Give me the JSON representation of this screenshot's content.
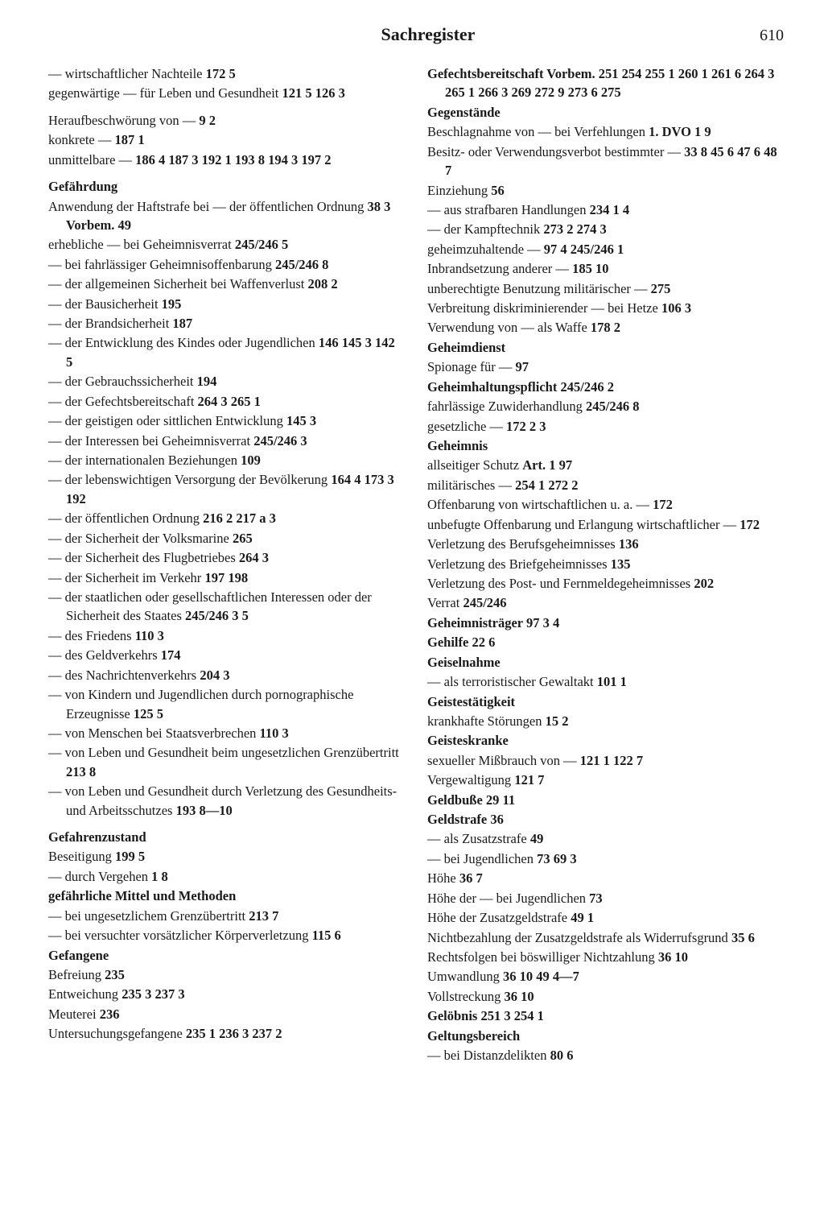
{
  "header": {
    "title": "Sachregister",
    "page": "610"
  },
  "left": [
    {
      "t": "— wirtschaftlicher Nachteile ",
      "r": "172 5"
    },
    {
      "t": "gegenwärtige — für Leben und Gesundheit ",
      "r": "121 5 126 3"
    },
    {
      "t": "Heraufbeschwörung von — ",
      "r": "9 2",
      "gap": true
    },
    {
      "t": "konkrete — ",
      "r": "187 1"
    },
    {
      "t": "unmittelbare — ",
      "r": "186 4 187 3 192 1 193 8 194 3 197 2"
    },
    {
      "h": "Gefährdung",
      "gap": true
    },
    {
      "t": "Anwendung der Haftstrafe bei — der öffentlichen Ordnung ",
      "r": "38 3 Vorbem. 49"
    },
    {
      "t": "erhebliche — bei Geheimnisverrat ",
      "r": "245/246 5"
    },
    {
      "t": "— bei fahrlässiger Geheimnisoffenbarung ",
      "r": "245/246 8"
    },
    {
      "t": "— der allgemeinen Sicherheit bei Waffenverlust ",
      "r": "208 2"
    },
    {
      "t": "— der Bausicherheit ",
      "r": "195"
    },
    {
      "t": "— der Brandsicherheit ",
      "r": "187"
    },
    {
      "t": "— der Entwicklung des Kindes oder Jugendlichen ",
      "r": "146 145 3 142 5"
    },
    {
      "t": "— der Gebrauchssicherheit ",
      "r": "194"
    },
    {
      "t": "— der Gefechtsbereitschaft ",
      "r": "264 3 265 1"
    },
    {
      "t": "— der geistigen oder sittlichen Entwicklung ",
      "r": "145 3"
    },
    {
      "t": "— der Interessen bei Geheimnisverrat ",
      "r": "245/246 3"
    },
    {
      "t": "— der internationalen Beziehungen ",
      "r": "109"
    },
    {
      "t": "— der lebenswichtigen Versorgung der Bevölkerung ",
      "r": "164 4 173 3 192"
    },
    {
      "t": "— der öffentlichen Ordnung ",
      "r": "216 2 217 a 3"
    },
    {
      "t": "— der Sicherheit der Volksmarine ",
      "r": "265"
    },
    {
      "t": "— der Sicherheit des Flugbetriebes ",
      "r": "264 3"
    },
    {
      "t": "— der Sicherheit im Verkehr ",
      "r": "197 198"
    },
    {
      "t": "— der staatlichen oder gesellschaftlichen Interessen oder der Sicherheit des Staates ",
      "r": "245/246 3 5"
    },
    {
      "t": "— des Friedens ",
      "r": "110 3"
    },
    {
      "t": "— des Geldverkehrs ",
      "r": "174"
    },
    {
      "t": "— des Nachrichtenverkehrs ",
      "r": "204 3"
    },
    {
      "t": "— von Kindern und Jugendlichen durch pornographische Erzeugnisse ",
      "r": "125 5"
    },
    {
      "t": "— von Menschen bei Staatsverbrechen ",
      "r": "110 3"
    },
    {
      "t": "— von Leben und Gesundheit beim ungesetzlichen Grenzübertritt ",
      "r": "213 8"
    },
    {
      "t": "— von Leben und Gesundheit durch Verletzung des Gesundheits- und Arbeitsschutzes ",
      "r": "193 8—10"
    },
    {
      "h": "Gefahrenzustand",
      "gap": true
    },
    {
      "t": "Beseitigung ",
      "r": "199 5"
    },
    {
      "t": "— durch Vergehen ",
      "r": "1 8"
    },
    {
      "h": "gefährliche Mittel und Methoden"
    },
    {
      "t": "— bei ungesetzlichem Grenzübertritt ",
      "r": "213 7"
    },
    {
      "t": "— bei versuchter vorsätzlicher Körperverletzung ",
      "r": "115 6"
    },
    {
      "h": "Gefangene"
    },
    {
      "t": "Befreiung ",
      "r": "235"
    },
    {
      "t": "Entweichung ",
      "r": "235 3 237 3"
    },
    {
      "t": "Meuterei ",
      "r": "236"
    },
    {
      "t": "Untersuchungsgefangene ",
      "r": "235 1 236 3 237 2"
    }
  ],
  "right": [
    {
      "bt": "Gefechtsbereitschaft Vorbem. 251 254 255 ",
      "r": "1 260 1 261 6 264 3 265 1 266 3 269 272 9 273 6 275"
    },
    {
      "h": "Gegenstände"
    },
    {
      "t": "Beschlagnahme von — bei Verfehlungen ",
      "r": "1. DVO 1 9"
    },
    {
      "t": "Besitz- oder Verwendungsverbot bestimmter — ",
      "r": "33 8 45 6 47 6 48 7"
    },
    {
      "t": "Einziehung ",
      "r": "56"
    },
    {
      "t": "— aus strafbaren Handlungen ",
      "r": "234 1 4"
    },
    {
      "t": "— der Kampftechnik ",
      "r": "273 2 274 3"
    },
    {
      "t": "geheimzuhaltende — ",
      "r": "97 4 245/246 1"
    },
    {
      "t": "Inbrandsetzung anderer — ",
      "r": "185 10"
    },
    {
      "t": "unberechtigte Benutzung militärischer — ",
      "r": "275"
    },
    {
      "t": "Verbreitung diskriminierender — bei Hetze ",
      "r": "106 3"
    },
    {
      "t": "Verwendung von — als Waffe ",
      "r": "178 2"
    },
    {
      "h": "Geheimdienst"
    },
    {
      "t": "Spionage für — ",
      "r": "97"
    },
    {
      "bt": "Geheimhaltungspflicht ",
      "r": "245/246 2"
    },
    {
      "t": "fahrlässige Zuwiderhandlung ",
      "r": "245/246 8"
    },
    {
      "t": "gesetzliche — ",
      "r": "172 2 3"
    },
    {
      "h": "Geheimnis"
    },
    {
      "t": "allseitiger Schutz ",
      "r": "Art. 1 97"
    },
    {
      "t": "militärisches — ",
      "r": "254 1 272 2"
    },
    {
      "t": "Offenbarung von wirtschaftlichen u. a. — ",
      "r": "172"
    },
    {
      "t": "unbefugte Offenbarung und Erlangung wirtschaftlicher — ",
      "r": "172"
    },
    {
      "t": "Verletzung des Berufsgeheimnisses ",
      "r": "136"
    },
    {
      "t": "Verletzung des Briefgeheimnisses ",
      "r": "135"
    },
    {
      "t": "Verletzung des Post- und Fernmeldegeheimnisses ",
      "r": "202"
    },
    {
      "t": "Verrat ",
      "r": "245/246"
    },
    {
      "bt": "Geheimnisträger ",
      "r": "97 3 4"
    },
    {
      "bt": "Gehilfe ",
      "r": "22 6"
    },
    {
      "h": "Geiselnahme"
    },
    {
      "t": "— als terroristischer Gewaltakt ",
      "r": "101 1"
    },
    {
      "h": "Geistestätigkeit"
    },
    {
      "t": "krankhafte Störungen ",
      "r": "15 2"
    },
    {
      "h": "Geisteskranke"
    },
    {
      "t": "sexueller Mißbrauch von — ",
      "r": "121 1 122 7"
    },
    {
      "t": "Vergewaltigung ",
      "r": "121 7"
    },
    {
      "bt": "Geldbuße ",
      "r": "29 11"
    },
    {
      "bt": "Geldstrafe ",
      "r": "36"
    },
    {
      "t": "— als Zusatzstrafe ",
      "r": "49"
    },
    {
      "t": "— bei Jugendlichen ",
      "r": "73 69 3"
    },
    {
      "t": "Höhe ",
      "r": "36 7"
    },
    {
      "t": "Höhe der — bei Jugendlichen ",
      "r": "73"
    },
    {
      "t": "Höhe der Zusatzgeldstrafe ",
      "r": "49 1"
    },
    {
      "t": "Nichtbezahlung der Zusatzgeldstrafe als Widerrufsgrund ",
      "r": "35 6"
    },
    {
      "t": "Rechtsfolgen bei böswilliger Nichtzahlung ",
      "r": "36 10"
    },
    {
      "t": "Umwandlung ",
      "r": "36 10 49 4—7"
    },
    {
      "t": "Vollstreckung ",
      "r": "36 10"
    },
    {
      "bt": "Gelöbnis ",
      "r": "251 3 254 1"
    },
    {
      "h": "Geltungsbereich"
    },
    {
      "t": "— bei Distanzdelikten ",
      "r": "80 6"
    }
  ]
}
